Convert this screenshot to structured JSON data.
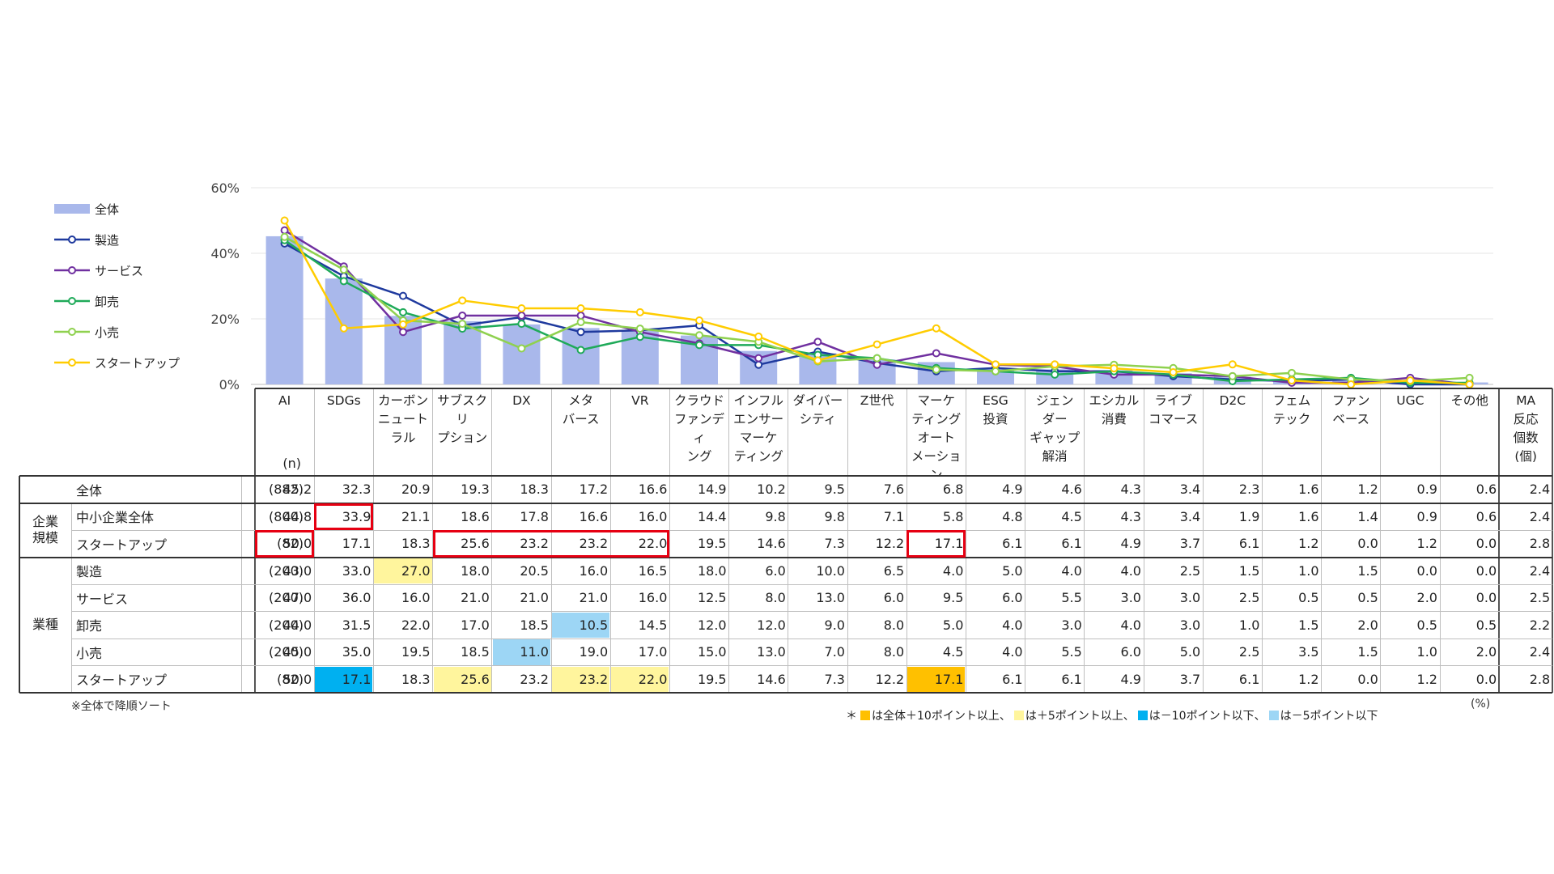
{
  "chart_data": {
    "type": "bar+line",
    "categories": [
      "AI",
      "SDGs",
      "カーボン\nニュート\nラル",
      "サブスクリ\nプション",
      "DX",
      "メタ\nバース",
      "VR",
      "クラウド\nファンディ\nング",
      "インフル\nエンサー\nマーケ\nティング",
      "ダイバー\nシティ",
      "Z世代",
      "マーケ\nティング\nオート\nメーション",
      "ESG\n投資",
      "ジェン\nダー\nギャップ\n解消",
      "エシカル\n消費",
      "ライブ\nコマース",
      "D2C",
      "フェム\nテック",
      "ファン\nベース",
      "UGC",
      "その他"
    ],
    "y_ticks": [
      "0%",
      "20%",
      "40%",
      "60%"
    ],
    "ylim": [
      0,
      60
    ],
    "bar_series": {
      "name": "全体",
      "color": "#a9b8eb"
    },
    "line_series": [
      {
        "name": "製造",
        "color": "#1f3a9e",
        "marker_fill": "#ffffff"
      },
      {
        "name": "サービス",
        "color": "#7030a0",
        "marker_fill": "#ffffff"
      },
      {
        "name": "卸売",
        "color": "#1faa59",
        "marker_fill": "#ffffff"
      },
      {
        "name": "小売",
        "color": "#8fd14f",
        "marker_fill": "#ffffff"
      },
      {
        "name": "スタートアップ",
        "color": "#ffcc00",
        "marker_fill": "#ffffff"
      }
    ],
    "table": {
      "n_label": "(n)",
      "extra_header": "MA\n反応\n個数\n(個)",
      "groups": [
        {
          "label": "",
          "rows": [
            0
          ]
        },
        {
          "label": "企業\n規模",
          "rows": [
            1,
            2
          ]
        },
        {
          "label": "業種",
          "rows": [
            3,
            4,
            5,
            6,
            7
          ]
        }
      ],
      "rows": [
        {
          "label": "全体",
          "n": "(882)",
          "values": [
            "45.2",
            "32.3",
            "20.9",
            "19.3",
            "18.3",
            "17.2",
            "16.6",
            "14.9",
            "10.2",
            "9.5",
            "7.6",
            "6.8",
            "4.9",
            "4.6",
            "4.3",
            "3.4",
            "2.3",
            "1.6",
            "1.2",
            "0.9",
            "0.6"
          ],
          "ma": "2.4",
          "hl": []
        },
        {
          "label": "中小企業全体",
          "n": "(800)",
          "values": [
            "44.8",
            "33.9",
            "21.1",
            "18.6",
            "17.8",
            "16.6",
            "16.0",
            "14.4",
            "9.8",
            "9.8",
            "7.1",
            "5.8",
            "4.8",
            "4.5",
            "4.3",
            "3.4",
            "1.9",
            "1.6",
            "1.4",
            "0.9",
            "0.6"
          ],
          "ma": "2.4",
          "hl": []
        },
        {
          "label": "スタートアップ",
          "n": "(82)",
          "values": [
            "50.0",
            "17.1",
            "18.3",
            "25.6",
            "23.2",
            "23.2",
            "22.0",
            "19.5",
            "14.6",
            "7.3",
            "12.2",
            "17.1",
            "6.1",
            "6.1",
            "4.9",
            "3.7",
            "6.1",
            "1.2",
            "0.0",
            "1.2",
            "0.0"
          ],
          "ma": "2.8",
          "hl": []
        },
        {
          "label": "製造",
          "n": "(200)",
          "values": [
            "43.0",
            "33.0",
            "27.0",
            "18.0",
            "20.5",
            "16.0",
            "16.5",
            "18.0",
            "6.0",
            "10.0",
            "6.5",
            "4.0",
            "5.0",
            "4.0",
            "4.0",
            "2.5",
            "1.5",
            "1.0",
            "1.5",
            "0.0",
            "0.0"
          ],
          "ma": "2.4",
          "hl": [
            [
              2,
              "y"
            ]
          ]
        },
        {
          "label": "サービス",
          "n": "(200)",
          "values": [
            "47.0",
            "36.0",
            "16.0",
            "21.0",
            "21.0",
            "21.0",
            "16.0",
            "12.5",
            "8.0",
            "13.0",
            "6.0",
            "9.5",
            "6.0",
            "5.5",
            "3.0",
            "3.0",
            "2.5",
            "0.5",
            "0.5",
            "2.0",
            "0.0"
          ],
          "ma": "2.5",
          "hl": []
        },
        {
          "label": "卸売",
          "n": "(200)",
          "values": [
            "44.0",
            "31.5",
            "22.0",
            "17.0",
            "18.5",
            "10.5",
            "14.5",
            "12.0",
            "12.0",
            "9.0",
            "8.0",
            "5.0",
            "4.0",
            "3.0",
            "4.0",
            "3.0",
            "1.0",
            "1.5",
            "2.0",
            "0.5",
            "0.5"
          ],
          "ma": "2.2",
          "hl": [
            [
              5,
              "lb"
            ]
          ]
        },
        {
          "label": "小売",
          "n": "(200)",
          "values": [
            "45.0",
            "35.0",
            "19.5",
            "18.5",
            "11.0",
            "19.0",
            "17.0",
            "15.0",
            "13.0",
            "7.0",
            "8.0",
            "4.5",
            "4.0",
            "5.5",
            "6.0",
            "5.0",
            "2.5",
            "3.5",
            "1.5",
            "1.0",
            "2.0"
          ],
          "ma": "2.4",
          "hl": [
            [
              4,
              "lb"
            ]
          ]
        },
        {
          "label": "スタートアップ",
          "n": "(82)",
          "values": [
            "50.0",
            "17.1",
            "18.3",
            "25.6",
            "23.2",
            "23.2",
            "22.0",
            "19.5",
            "14.6",
            "7.3",
            "12.2",
            "17.1",
            "6.1",
            "6.1",
            "4.9",
            "3.7",
            "6.1",
            "1.2",
            "0.0",
            "1.2",
            "0.0"
          ],
          "ma": "2.8",
          "hl": [
            [
              1,
              "b"
            ],
            [
              3,
              "y"
            ],
            [
              5,
              "y"
            ],
            [
              6,
              "y"
            ],
            [
              11,
              "o"
            ]
          ]
        }
      ],
      "red_boxes": [
        {
          "row": 1,
          "from": 1,
          "to": 1
        },
        {
          "row": 2,
          "from": 0,
          "to": 0
        },
        {
          "row": 2,
          "from": 3,
          "to": 6
        },
        {
          "row": 2,
          "from": 11,
          "to": 11
        }
      ],
      "highlight_colors": {
        "o": "#ffc000",
        "y": "#fff59d",
        "b": "#00b0f0",
        "lb": "#9dd6f5"
      }
    },
    "note_sort": "※全体で降順ソート",
    "unit_label": "(%)",
    "legend_note": [
      {
        "text": "＊",
        "swatch": ""
      },
      {
        "text": "は全体＋10ポイント以上、",
        "swatch": "#ffc000"
      },
      {
        "text": "は＋5ポイント以上、",
        "swatch": "#fff59d"
      },
      {
        "text": "は－10ポイント以下、",
        "swatch": "#00b0f0"
      },
      {
        "text": "は－5ポイント以下",
        "swatch": "#9dd6f5"
      }
    ]
  }
}
